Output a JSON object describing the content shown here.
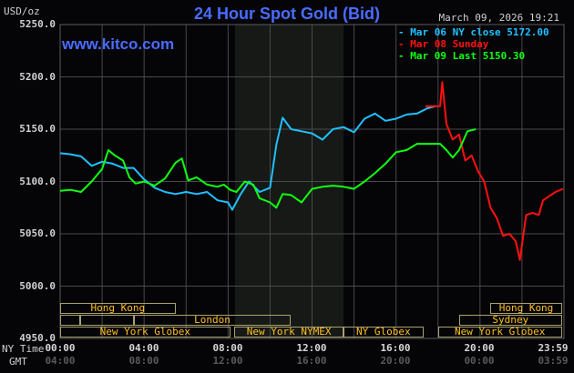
{
  "header": {
    "title": "24 Hour Spot Gold (Bid)",
    "units": "USD/oz",
    "datetime": "March 09, 2026 19:21",
    "website": "www.kitco.com"
  },
  "legend": [
    {
      "label": "Mar 06 NY close 5172.00",
      "color": "#20c0ff"
    },
    {
      "label": "Mar 08 Sunday",
      "color": "#ff1010"
    },
    {
      "label": "Mar 09 Last 5150.30",
      "color": "#10ff10"
    }
  ],
  "axes": {
    "y_ticks": [
      "5250.0",
      "5200.0",
      "5150.0",
      "5100.0",
      "5050.0",
      "5000.0",
      "4950.0"
    ],
    "x_row_label_ny": "NY Time",
    "x_row_label_gmt": "GMT",
    "x_ticks_ny": [
      "00:00",
      "04:00",
      "08:00",
      "12:00",
      "16:00",
      "20:00",
      "23:59"
    ],
    "x_ticks_gmt": [
      "04:00",
      "08:00",
      "12:00",
      "16:00",
      "20:00",
      "00:00",
      "03:59"
    ]
  },
  "sessions": [
    {
      "label": "Hong Kong",
      "row": 0,
      "start": 0,
      "end": 5.5
    },
    {
      "label": "",
      "row": 1,
      "start": 0,
      "end": 0.95
    },
    {
      "label": "",
      "row": 1,
      "start": 0.95,
      "end": 3.5
    },
    {
      "label": "London",
      "row": 1,
      "start": 3.5,
      "end": 11.0
    },
    {
      "label": "New York Globex",
      "row": 2,
      "start": 0,
      "end": 8.1
    },
    {
      "label": "New York NYMEX",
      "row": 2,
      "start": 8.3,
      "end": 13.5
    },
    {
      "label": "NY Globex",
      "row": 2,
      "start": 13.5,
      "end": 17.3
    },
    {
      "label": "New York Globex",
      "row": 2,
      "start": 18.0,
      "end": 23.9
    },
    {
      "label": "Sydney",
      "row": 1,
      "start": 19.0,
      "end": 23.9
    },
    {
      "label": "Hong Kong",
      "row": 0,
      "start": 20.5,
      "end": 23.9
    }
  ],
  "chart_data": {
    "type": "line",
    "title": "24 Hour Spot Gold (Bid)",
    "xlabel": "NY Time / GMT",
    "ylabel": "USD/oz",
    "ylim": [
      4950,
      5250
    ],
    "xlim_hours": [
      0,
      24
    ],
    "grid": true,
    "shaded_region_hours": [
      8.33,
      13.5
    ],
    "legend_position": "top-right",
    "series": [
      {
        "name": "Mar 06 NY close 5172.00",
        "color": "#20c0ff",
        "points": [
          [
            0,
            5127
          ],
          [
            0.5,
            5126
          ],
          [
            1,
            5124
          ],
          [
            1.5,
            5115
          ],
          [
            2,
            5119
          ],
          [
            2.5,
            5117
          ],
          [
            3,
            5113
          ],
          [
            3.5,
            5113
          ],
          [
            4,
            5102
          ],
          [
            4.5,
            5094
          ],
          [
            5,
            5090
          ],
          [
            5.5,
            5088
          ],
          [
            6,
            5090
          ],
          [
            6.5,
            5088
          ],
          [
            7,
            5090
          ],
          [
            7.5,
            5082
          ],
          [
            8,
            5080
          ],
          [
            8.2,
            5073
          ],
          [
            8.6,
            5088
          ],
          [
            9,
            5100
          ],
          [
            9.5,
            5090
          ],
          [
            10,
            5094
          ],
          [
            10.3,
            5135
          ],
          [
            10.6,
            5161
          ],
          [
            11,
            5150
          ],
          [
            11.5,
            5148
          ],
          [
            12,
            5146
          ],
          [
            12.5,
            5140
          ],
          [
            13,
            5150
          ],
          [
            13.5,
            5152
          ],
          [
            14,
            5147
          ],
          [
            14.5,
            5160
          ],
          [
            15,
            5165
          ],
          [
            15.5,
            5158
          ],
          [
            16,
            5160
          ],
          [
            16.5,
            5164
          ],
          [
            17,
            5165
          ],
          [
            17.5,
            5170
          ],
          [
            17.9,
            5172
          ]
        ]
      },
      {
        "name": "Mar 08 Sunday",
        "color": "#ff1010",
        "points": [
          [
            17.4,
            5172
          ],
          [
            18.1,
            5172
          ],
          [
            18.2,
            5195
          ],
          [
            18.4,
            5155
          ],
          [
            18.7,
            5140
          ],
          [
            19,
            5145
          ],
          [
            19.3,
            5120
          ],
          [
            19.6,
            5125
          ],
          [
            19.9,
            5110
          ],
          [
            20.2,
            5100
          ],
          [
            20.5,
            5075
          ],
          [
            20.8,
            5065
          ],
          [
            21.1,
            5048
          ],
          [
            21.4,
            5050
          ],
          [
            21.7,
            5043
          ],
          [
            21.9,
            5025
          ],
          [
            22.2,
            5068
          ],
          [
            22.5,
            5070
          ],
          [
            22.8,
            5068
          ],
          [
            23,
            5082
          ],
          [
            23.3,
            5086
          ],
          [
            23.6,
            5090
          ],
          [
            23.95,
            5093
          ]
        ]
      },
      {
        "name": "Mar 09 Last 5150.30",
        "color": "#10ff10",
        "points": [
          [
            0,
            5091
          ],
          [
            0.5,
            5092
          ],
          [
            1,
            5090
          ],
          [
            1.5,
            5100
          ],
          [
            2,
            5112
          ],
          [
            2.3,
            5130
          ],
          [
            2.6,
            5125
          ],
          [
            3,
            5120
          ],
          [
            3.3,
            5104
          ],
          [
            3.6,
            5098
          ],
          [
            4,
            5100
          ],
          [
            4.5,
            5096
          ],
          [
            5,
            5103
          ],
          [
            5.5,
            5118
          ],
          [
            5.8,
            5122
          ],
          [
            6.1,
            5101
          ],
          [
            6.5,
            5104
          ],
          [
            7,
            5097
          ],
          [
            7.5,
            5095
          ],
          [
            7.8,
            5097
          ],
          [
            8.1,
            5092
          ],
          [
            8.4,
            5090
          ],
          [
            8.8,
            5100
          ],
          [
            9.2,
            5097
          ],
          [
            9.5,
            5084
          ],
          [
            10,
            5080
          ],
          [
            10.3,
            5075
          ],
          [
            10.6,
            5088
          ],
          [
            11,
            5087
          ],
          [
            11.5,
            5080
          ],
          [
            12,
            5093
          ],
          [
            12.5,
            5095
          ],
          [
            13,
            5096
          ],
          [
            13.5,
            5095
          ],
          [
            14,
            5093
          ],
          [
            14.5,
            5100
          ],
          [
            15,
            5108
          ],
          [
            15.5,
            5117
          ],
          [
            16,
            5128
          ],
          [
            16.5,
            5130
          ],
          [
            17,
            5136
          ],
          [
            17.5,
            5136
          ],
          [
            18.1,
            5136
          ],
          [
            18.4,
            5130
          ],
          [
            18.7,
            5123
          ],
          [
            19,
            5130
          ],
          [
            19.4,
            5148
          ],
          [
            19.8,
            5150
          ]
        ]
      }
    ]
  }
}
